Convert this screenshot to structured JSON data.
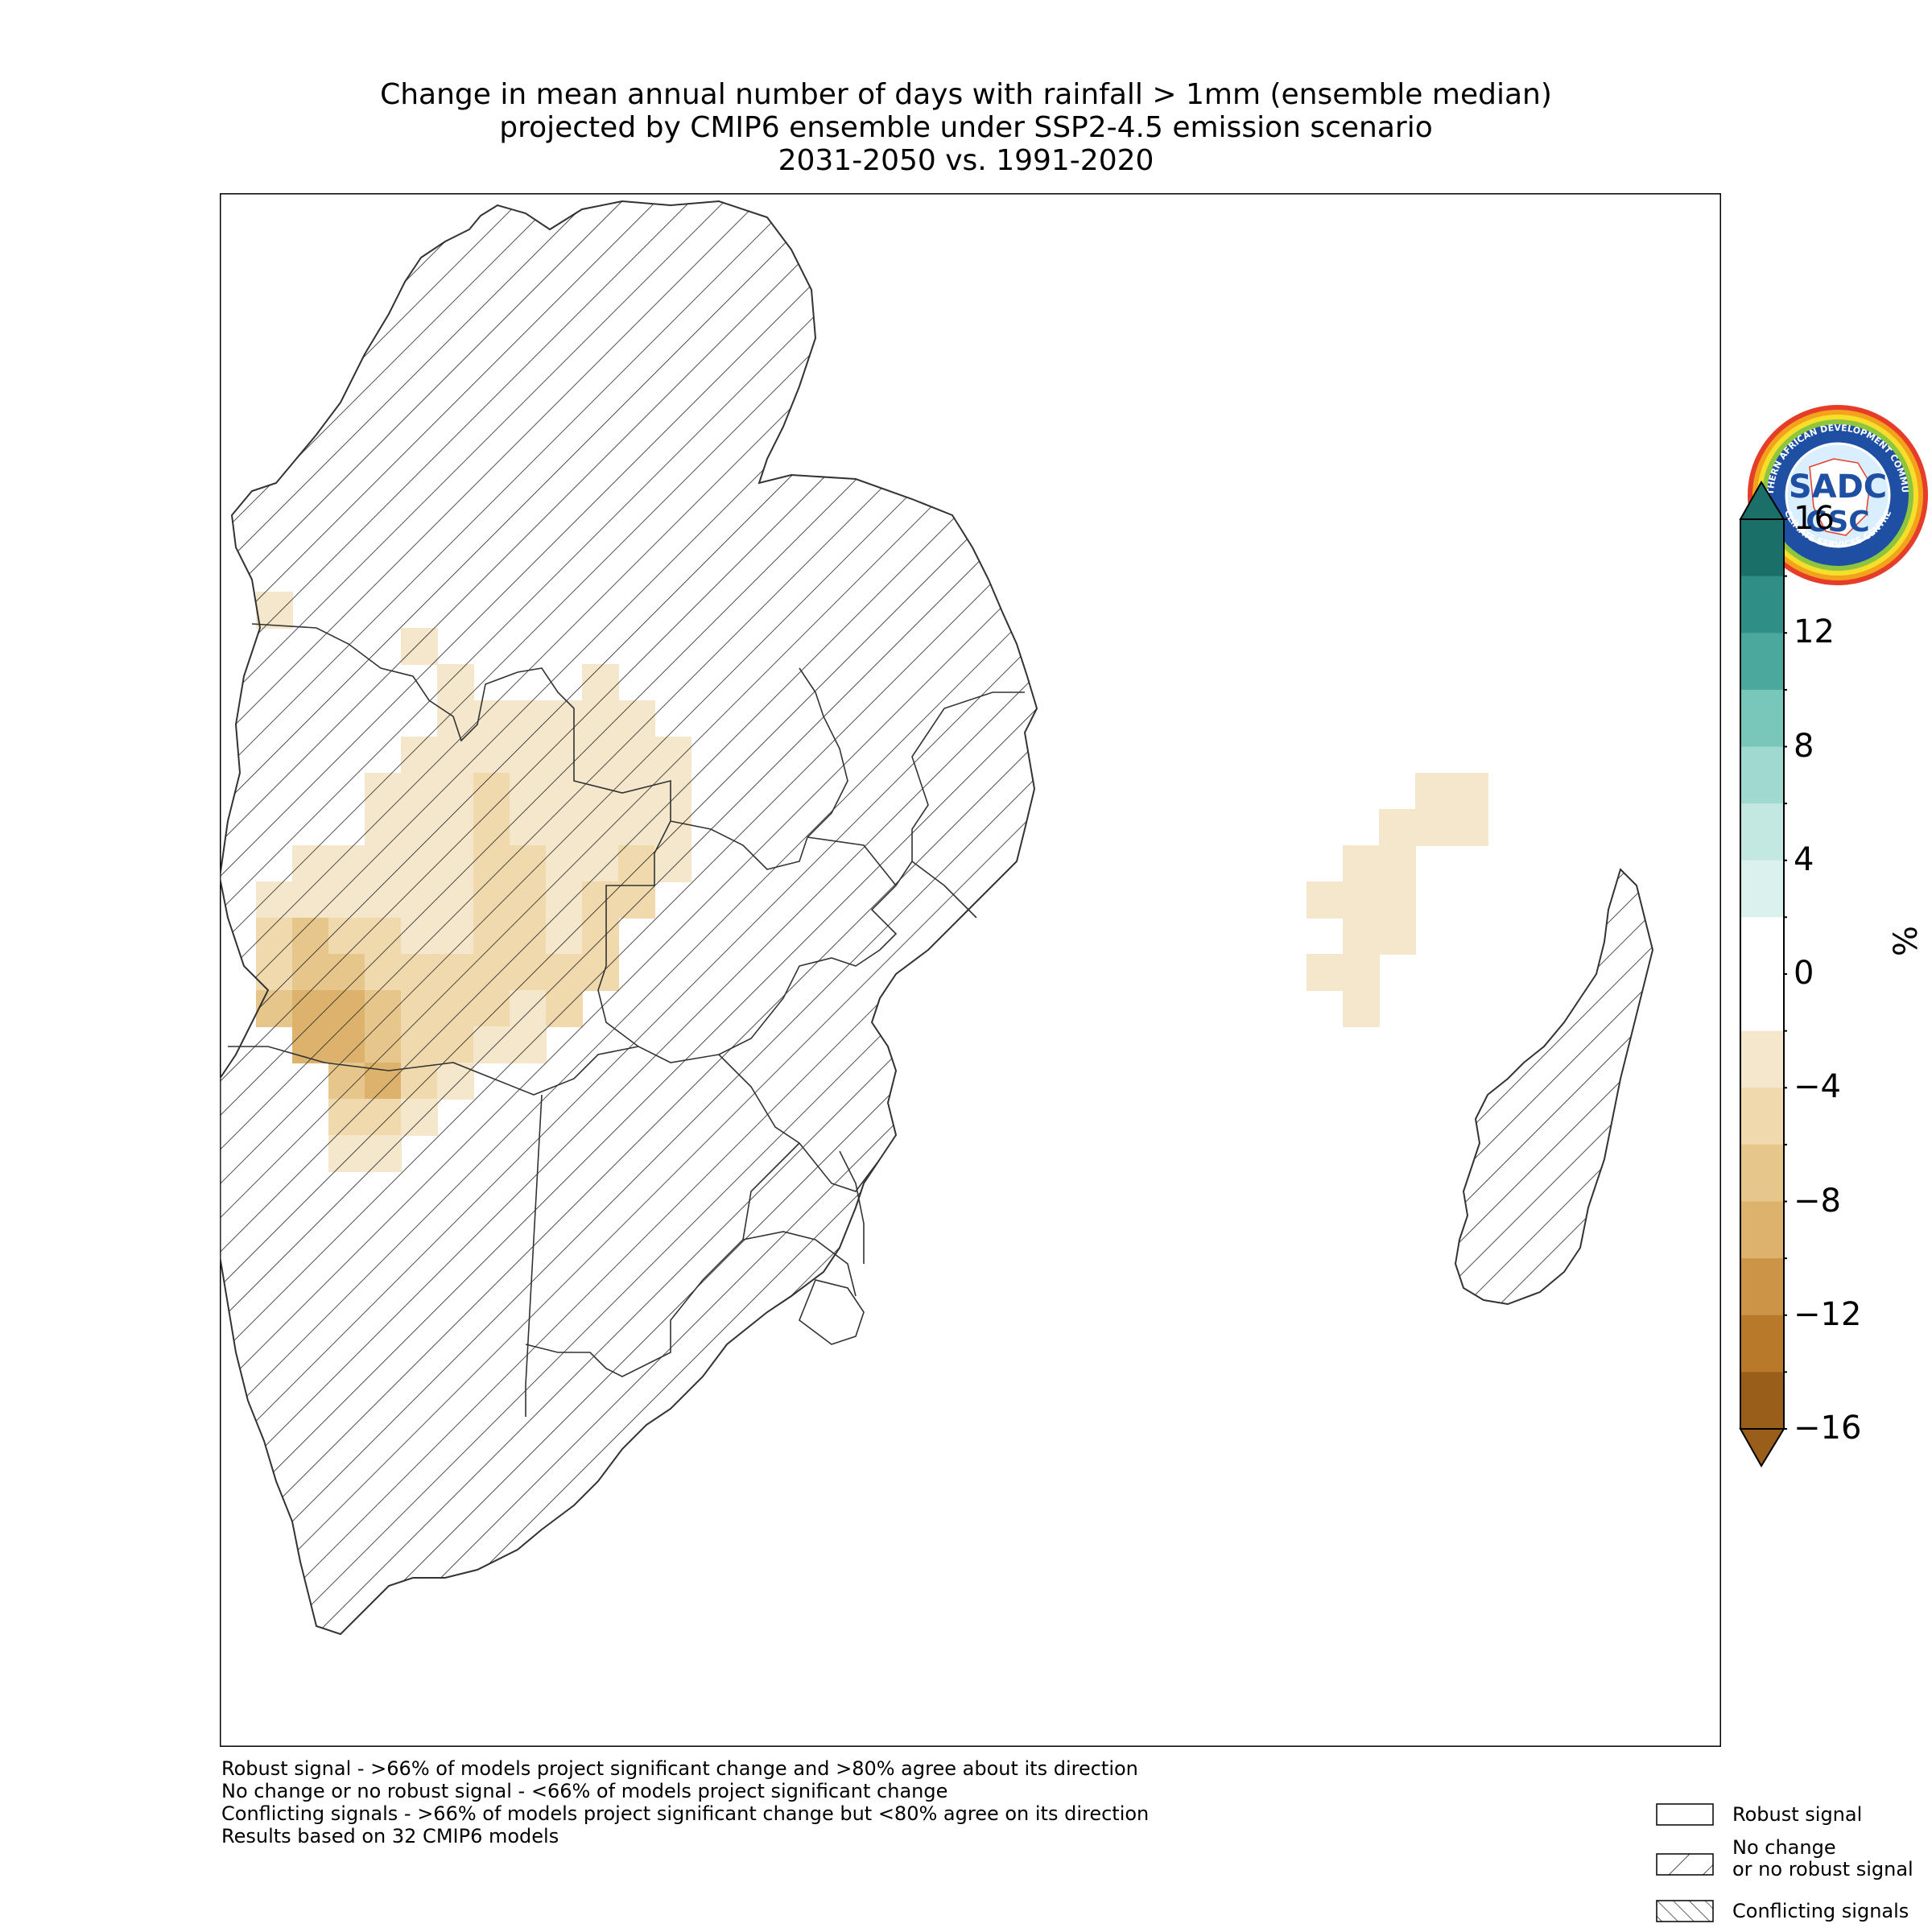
{
  "title": {
    "line1": "Change in mean annual number of days with rainfall > 1mm (ensemble median)",
    "line2": "projected by CMIP6 ensemble under SSP2-4.5 emission scenario",
    "line3": "2031-2050 vs. 1991-2020"
  },
  "logo": {
    "top_text": "SOUTHERN AFRICAN DEVELOPMENT COMMUNITY",
    "bottom_text": "CLIMATE SERVICES CENTRE",
    "mark": "SADC",
    "sub": "CSC"
  },
  "colorbar": {
    "unit": "%",
    "ticks": [
      "16",
      "12",
      "8",
      "4",
      "0",
      "−4",
      "−8",
      "−12",
      "−16"
    ],
    "colors_top_to_bottom": [
      "#1a7069",
      "#2f8f86",
      "#4aa89d",
      "#79c7ba",
      "#9fd9cf",
      "#c3e8e2",
      "#dbf1ed",
      "#ffffff",
      "#ffffff",
      "#f4e7cc",
      "#efd9ad",
      "#e6c68b",
      "#dcb26c",
      "#cb9447",
      "#b87a2a",
      "#9a5e1b"
    ],
    "range": [
      -16,
      16
    ]
  },
  "legend": {
    "robust": "Robust signal",
    "no_change_line1": "No change",
    "no_change_line2": "or no robust signal",
    "conflicting": "Conflicting signals"
  },
  "notes": {
    "line1": "Robust signal - >66% of models project significant change and >80% agree about its direction",
    "line2": "No change or no robust signal - <66% of models project significant change",
    "line3": "Conflicting signals - >66% of models project significant change but <80% agree on its direction",
    "line4": "Results based on 32 CMIP6 models"
  },
  "map_cells": [
    {
      "r": 11,
      "c": 1,
      "v": -2
    },
    {
      "r": 12,
      "c": 5,
      "v": -3
    },
    {
      "r": 13,
      "c": 6,
      "v": -3
    },
    {
      "r": 13,
      "c": 10,
      "v": -3
    },
    {
      "r": 14,
      "c": 6,
      "v": -3
    },
    {
      "r": 14,
      "c": 7,
      "v": -3
    },
    {
      "r": 14,
      "c": 8,
      "v": -3
    },
    {
      "r": 14,
      "c": 9,
      "v": -3
    },
    {
      "r": 14,
      "c": 10,
      "v": -3
    },
    {
      "r": 14,
      "c": 11,
      "v": -3
    },
    {
      "r": 15,
      "c": 5,
      "v": -3
    },
    {
      "r": 15,
      "c": 6,
      "v": -3
    },
    {
      "r": 15,
      "c": 7,
      "v": -3
    },
    {
      "r": 15,
      "c": 8,
      "v": -3
    },
    {
      "r": 15,
      "c": 9,
      "v": -3
    },
    {
      "r": 15,
      "c": 10,
      "v": -3
    },
    {
      "r": 15,
      "c": 11,
      "v": -3
    },
    {
      "r": 15,
      "c": 12,
      "v": -3
    },
    {
      "r": 16,
      "c": 4,
      "v": -3
    },
    {
      "r": 16,
      "c": 5,
      "v": -3
    },
    {
      "r": 16,
      "c": 6,
      "v": -3
    },
    {
      "r": 16,
      "c": 7,
      "v": -5
    },
    {
      "r": 16,
      "c": 8,
      "v": -3
    },
    {
      "r": 16,
      "c": 9,
      "v": -3
    },
    {
      "r": 16,
      "c": 10,
      "v": -3
    },
    {
      "r": 16,
      "c": 11,
      "v": -3
    },
    {
      "r": 16,
      "c": 12,
      "v": -3
    },
    {
      "r": 17,
      "c": 4,
      "v": -3
    },
    {
      "r": 17,
      "c": 5,
      "v": -3
    },
    {
      "r": 17,
      "c": 6,
      "v": -3
    },
    {
      "r": 17,
      "c": 7,
      "v": -5
    },
    {
      "r": 17,
      "c": 8,
      "v": -3
    },
    {
      "r": 17,
      "c": 9,
      "v": -3
    },
    {
      "r": 17,
      "c": 10,
      "v": -3
    },
    {
      "r": 17,
      "c": 11,
      "v": -3
    },
    {
      "r": 17,
      "c": 12,
      "v": -3
    },
    {
      "r": 18,
      "c": 2,
      "v": -3
    },
    {
      "r": 18,
      "c": 3,
      "v": -3
    },
    {
      "r": 18,
      "c": 4,
      "v": -3
    },
    {
      "r": 18,
      "c": 5,
      "v": -3
    },
    {
      "r": 18,
      "c": 6,
      "v": -3
    },
    {
      "r": 18,
      "c": 7,
      "v": -5
    },
    {
      "r": 18,
      "c": 8,
      "v": -5
    },
    {
      "r": 18,
      "c": 9,
      "v": -3
    },
    {
      "r": 18,
      "c": 10,
      "v": -3
    },
    {
      "r": 18,
      "c": 11,
      "v": -5
    },
    {
      "r": 18,
      "c": 12,
      "v": -3
    },
    {
      "r": 19,
      "c": 1,
      "v": -3
    },
    {
      "r": 19,
      "c": 2,
      "v": -3
    },
    {
      "r": 19,
      "c": 3,
      "v": -3
    },
    {
      "r": 19,
      "c": 4,
      "v": -3
    },
    {
      "r": 19,
      "c": 5,
      "v": -3
    },
    {
      "r": 19,
      "c": 6,
      "v": -3
    },
    {
      "r": 19,
      "c": 7,
      "v": -5
    },
    {
      "r": 19,
      "c": 8,
      "v": -5
    },
    {
      "r": 19,
      "c": 9,
      "v": -3
    },
    {
      "r": 19,
      "c": 10,
      "v": -5
    },
    {
      "r": 19,
      "c": 11,
      "v": -5
    },
    {
      "r": 20,
      "c": 1,
      "v": -5
    },
    {
      "r": 20,
      "c": 2,
      "v": -7
    },
    {
      "r": 20,
      "c": 3,
      "v": -5
    },
    {
      "r": 20,
      "c": 4,
      "v": -5
    },
    {
      "r": 20,
      "c": 5,
      "v": -3
    },
    {
      "r": 20,
      "c": 6,
      "v": -3
    },
    {
      "r": 20,
      "c": 7,
      "v": -5
    },
    {
      "r": 20,
      "c": 8,
      "v": -5
    },
    {
      "r": 20,
      "c": 9,
      "v": -3
    },
    {
      "r": 20,
      "c": 10,
      "v": -5
    },
    {
      "r": 21,
      "c": 1,
      "v": -5
    },
    {
      "r": 21,
      "c": 2,
      "v": -7
    },
    {
      "r": 21,
      "c": 3,
      "v": -7
    },
    {
      "r": 21,
      "c": 4,
      "v": -5
    },
    {
      "r": 21,
      "c": 5,
      "v": -5
    },
    {
      "r": 21,
      "c": 6,
      "v": -5
    },
    {
      "r": 21,
      "c": 7,
      "v": -5
    },
    {
      "r": 21,
      "c": 8,
      "v": -5
    },
    {
      "r": 21,
      "c": 9,
      "v": -5
    },
    {
      "r": 21,
      "c": 10,
      "v": -5
    },
    {
      "r": 22,
      "c": 1,
      "v": -7
    },
    {
      "r": 22,
      "c": 2,
      "v": -9
    },
    {
      "r": 22,
      "c": 3,
      "v": -9
    },
    {
      "r": 22,
      "c": 4,
      "v": -7
    },
    {
      "r": 22,
      "c": 5,
      "v": -5
    },
    {
      "r": 22,
      "c": 6,
      "v": -5
    },
    {
      "r": 22,
      "c": 7,
      "v": -5
    },
    {
      "r": 22,
      "c": 8,
      "v": -3
    },
    {
      "r": 22,
      "c": 9,
      "v": -5
    },
    {
      "r": 23,
      "c": 2,
      "v": -9
    },
    {
      "r": 23,
      "c": 3,
      "v": -9
    },
    {
      "r": 23,
      "c": 4,
      "v": -7
    },
    {
      "r": 23,
      "c": 5,
      "v": -5
    },
    {
      "r": 23,
      "c": 6,
      "v": -5
    },
    {
      "r": 23,
      "c": 7,
      "v": -3
    },
    {
      "r": 23,
      "c": 8,
      "v": -3
    },
    {
      "r": 24,
      "c": 3,
      "v": -7
    },
    {
      "r": 24,
      "c": 4,
      "v": -9
    },
    {
      "r": 24,
      "c": 5,
      "v": -5
    },
    {
      "r": 24,
      "c": 6,
      "v": -3
    },
    {
      "r": 25,
      "c": 3,
      "v": -5
    },
    {
      "r": 25,
      "c": 4,
      "v": -5
    },
    {
      "r": 25,
      "c": 5,
      "v": -3
    },
    {
      "r": 26,
      "c": 3,
      "v": -3
    },
    {
      "r": 26,
      "c": 4,
      "v": -3
    }
  ],
  "island_cells": [
    {
      "r": 16,
      "c": 33,
      "v": -3
    },
    {
      "r": 16,
      "c": 34,
      "v": -3
    },
    {
      "r": 17,
      "c": 32,
      "v": -3
    },
    {
      "r": 17,
      "c": 33,
      "v": -3
    },
    {
      "r": 17,
      "c": 34,
      "v": -3
    },
    {
      "r": 18,
      "c": 31,
      "v": -3
    },
    {
      "r": 18,
      "c": 32,
      "v": -3
    },
    {
      "r": 19,
      "c": 30,
      "v": -3
    },
    {
      "r": 19,
      "c": 31,
      "v": -3
    },
    {
      "r": 19,
      "c": 32,
      "v": -3
    },
    {
      "r": 20,
      "c": 31,
      "v": -3
    },
    {
      "r": 20,
      "c": 32,
      "v": -3
    },
    {
      "r": 21,
      "c": 30,
      "v": -3
    },
    {
      "r": 21,
      "c": 31,
      "v": -3
    },
    {
      "r": 22,
      "c": 31,
      "v": -3
    }
  ]
}
